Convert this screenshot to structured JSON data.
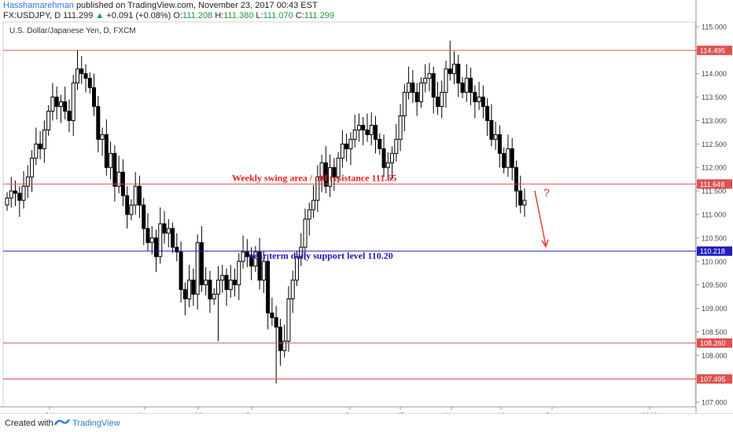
{
  "header": {
    "author": "Hasshamarehman",
    "published": "published on TradingView.com, November 23, 2017 00:43 EST",
    "symbol_line_prefix": "FX:USDJPY, D",
    "last_price": "111.299",
    "change": "+0.091 (+0.08%)",
    "open_label": "O:",
    "open_value": "111.208",
    "high_label": "H:",
    "high_value": "111.380",
    "low_label": "L:",
    "low_value": "111.070",
    "close_label": "C:",
    "close_value": "111.299",
    "chart_title": "U.S. Dollar/Japanese Yen, D, FXCM"
  },
  "footer": {
    "created_with": "Created with",
    "brand": "TradingView"
  },
  "annotations": {
    "swing_text": "Weekly swing area / old resistance 111.65",
    "support_text": "near term daily support level 110.20",
    "question_mark": "?"
  },
  "colors": {
    "resistance_line": "#e05050",
    "support_line": "#2020c0",
    "swing_text": "#e02020",
    "support_text": "#1a1aa8",
    "candle": "#000000"
  },
  "chart_data": {
    "type": "candlestick",
    "title": "U.S. Dollar/Japanese Yen, D, FXCM",
    "ylim": [
      106.9,
      115.1
    ],
    "y_ticks": [
      "115.000",
      "114.500",
      "114.000",
      "113.500",
      "113.000",
      "112.500",
      "112.000",
      "111.500",
      "111.000",
      "110.500",
      "110.000",
      "109.500",
      "109.000",
      "108.500",
      "108.000",
      "107.500",
      "107.000"
    ],
    "x_tick_labels": [
      "Jul",
      "Aug",
      "16",
      "Sep",
      "Oct",
      "17",
      "Nov",
      "16",
      "Dec",
      "2018"
    ],
    "horizontal_levels": [
      {
        "value": 114.495,
        "label": "114.495",
        "kind": "resistance"
      },
      {
        "value": 111.648,
        "label": "111.648",
        "kind": "resistance"
      },
      {
        "value": 110.218,
        "label": "110.218",
        "kind": "support"
      },
      {
        "value": 108.26,
        "label": "108.260",
        "kind": "resistance"
      },
      {
        "value": 107.495,
        "label": "107.495",
        "kind": "resistance"
      }
    ],
    "close_series": [
      111.35,
      111.5,
      111.45,
      111.3,
      111.6,
      111.8,
      112.2,
      112.5,
      112.4,
      112.8,
      113.2,
      113.5,
      113.3,
      113.4,
      113.2,
      113.0,
      113.8,
      114.1,
      114.0,
      113.9,
      113.7,
      113.3,
      112.6,
      112.7,
      112.0,
      112.3,
      111.6,
      111.9,
      111.4,
      111.0,
      111.2,
      111.6,
      111.2,
      110.7,
      110.4,
      110.5,
      110.1,
      110.8,
      110.6,
      110.7,
      110.3,
      110.2,
      109.4,
      109.2,
      109.6,
      109.3,
      110.4,
      109.5,
      109.6,
      109.2,
      109.3,
      109.6,
      109.7,
      109.4,
      109.6,
      109.5,
      110.0,
      110.2,
      110.1,
      109.9,
      110.2,
      109.6,
      110.0,
      108.9,
      108.8,
      108.6,
      108.1,
      108.3,
      109.2,
      109.6,
      110.1,
      110.3,
      110.9,
      111.1,
      111.3,
      111.8,
      112.1,
      111.6,
      112.0,
      111.8,
      112.2,
      112.5,
      112.4,
      112.6,
      112.8,
      112.9,
      112.8,
      112.7,
      112.9,
      112.6,
      112.4,
      112.0,
      112.1,
      112.3,
      112.6,
      113.1,
      113.6,
      113.8,
      113.6,
      113.4,
      113.8,
      113.9,
      114.0,
      113.5,
      113.3,
      113.6,
      114.1,
      114.0,
      114.2,
      113.8,
      113.6,
      113.9,
      113.6,
      113.4,
      113.5,
      113.3,
      113.0,
      112.6,
      112.7,
      112.3,
      112.0,
      112.4,
      112.0,
      111.5,
      111.2,
      111.3
    ],
    "opening_price_first": 111.2,
    "highs_offset": 0.25,
    "lows_offset": 0.25,
    "special_wicks": [
      {
        "index": 17,
        "high": 114.5
      },
      {
        "index": 65,
        "low": 107.4
      },
      {
        "index": 107,
        "high": 114.7
      },
      {
        "index": 51,
        "low": 108.3
      }
    ]
  }
}
